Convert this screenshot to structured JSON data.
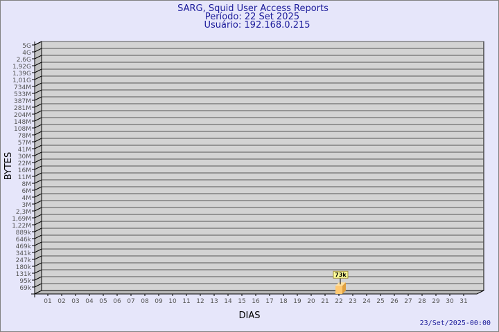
{
  "chart_data": {
    "type": "bar",
    "title": "SARG, Squid User Access Reports",
    "subtitle_lines": [
      "Período: 22 Set 2025",
      "Usuário: 192.168.0.215"
    ],
    "xlabel": "DIAS",
    "ylabel": "BYTES",
    "y_scale": "log",
    "y_tick_labels": [
      "5G",
      "4G",
      "2,6G",
      "1,92G",
      "1,39G",
      "1,01G",
      "734M",
      "533M",
      "387M",
      "281M",
      "204M",
      "148M",
      "108M",
      "78M",
      "57M",
      "41M",
      "30M",
      "22M",
      "16M",
      "11M",
      "8M",
      "6M",
      "4M",
      "3M",
      "2,3M",
      "1,69M",
      "1,22M",
      "889k",
      "646k",
      "469k",
      "341k",
      "247k",
      "180k",
      "131k",
      "95k",
      "69k"
    ],
    "categories": [
      "01",
      "02",
      "03",
      "04",
      "05",
      "06",
      "07",
      "08",
      "09",
      "10",
      "11",
      "12",
      "13",
      "14",
      "15",
      "16",
      "17",
      "18",
      "19",
      "20",
      "21",
      "22",
      "23",
      "24",
      "25",
      "26",
      "27",
      "28",
      "29",
      "30",
      "31"
    ],
    "bars": [
      {
        "category": "22",
        "value": 73000,
        "label": "73k"
      }
    ],
    "grid": true,
    "footer": "23/Set/2025-00:00",
    "colors": {
      "title": "#1a1a9a",
      "bar_front": "#ffc870",
      "bar_side": "#e0a040",
      "plot_bg": "#d3d3d3",
      "page_bg": "#e6e6fa",
      "label_bg": "#ffff99"
    }
  }
}
